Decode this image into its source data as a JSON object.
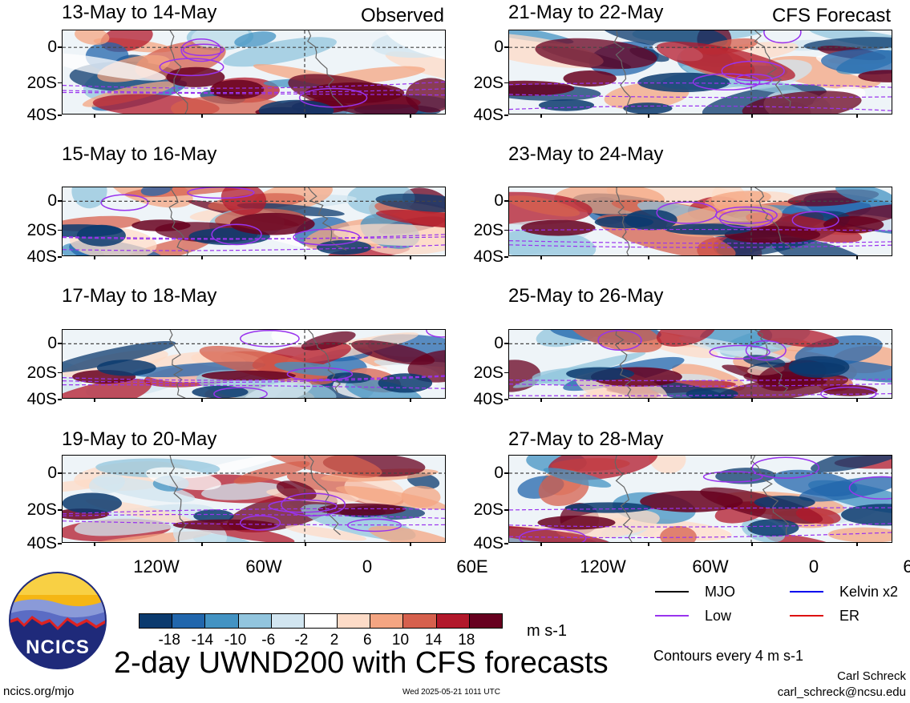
{
  "panels": [
    {
      "col": 0,
      "row": 0,
      "title": "13-May to 14-May",
      "tag": "Observed"
    },
    {
      "col": 0,
      "row": 1,
      "title": "15-May to 16-May",
      "tag": ""
    },
    {
      "col": 0,
      "row": 2,
      "title": "17-May to 18-May",
      "tag": ""
    },
    {
      "col": 0,
      "row": 3,
      "title": "19-May to 20-May",
      "tag": ""
    },
    {
      "col": 1,
      "row": 0,
      "title": "21-May to 22-May",
      "tag": "CFS Forecast"
    },
    {
      "col": 1,
      "row": 1,
      "title": "23-May to 24-May",
      "tag": ""
    },
    {
      "col": 1,
      "row": 2,
      "title": "25-May to 26-May",
      "tag": ""
    },
    {
      "col": 1,
      "row": 3,
      "title": "27-May to 28-May",
      "tag": ""
    }
  ],
  "y_axis": {
    "labels": [
      "0",
      "20S",
      "40S"
    ]
  },
  "x_axis": {
    "labels": [
      "120W",
      "60W",
      "0",
      "60E"
    ]
  },
  "colorbar": {
    "colors": [
      "#0b3a6e",
      "#2166ac",
      "#4393c3",
      "#92c5de",
      "#d1e5f0",
      "#ffffff",
      "#fddbc7",
      "#f4a582",
      "#d6604d",
      "#b2182b",
      "#67001f"
    ],
    "labels": [
      "-18",
      "-14",
      "-10",
      "-6",
      "-2",
      "2",
      "6",
      "10",
      "14",
      "18"
    ],
    "units": "m s-1"
  },
  "legend": {
    "items": [
      {
        "label": "MJO",
        "color": "#000000"
      },
      {
        "label": "Kelvin x2",
        "color": "#0000ee"
      },
      {
        "label": "Low",
        "color": "#9933ee"
      },
      {
        "label": "ER",
        "color": "#dd1111"
      }
    ],
    "contour_note": "Contours every 4 m s-1"
  },
  "logo": {
    "text": "NCICS"
  },
  "main_title": "2-day UWND200 with CFS forecasts",
  "footer": {
    "url": "ncics.org/mjo",
    "timestamp": "Wed 2025-05-21 1011 UTC",
    "author": "Carl Schreck",
    "email": "carl_schreck@ncsu.edu"
  }
}
